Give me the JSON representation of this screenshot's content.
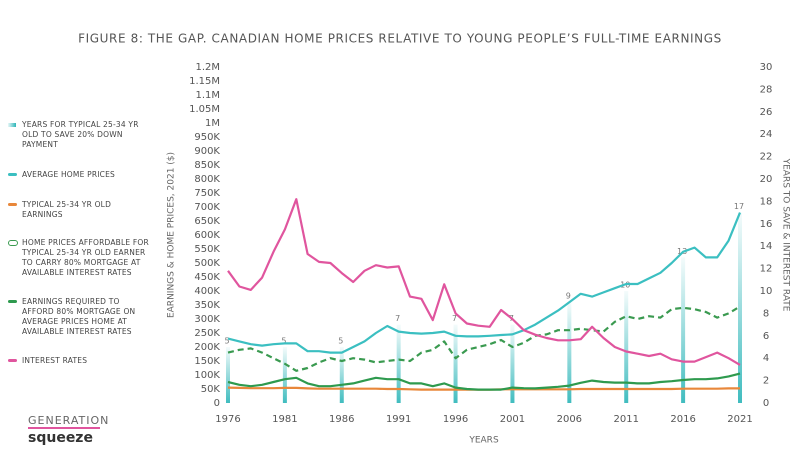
{
  "chart_data": {
    "type": "line",
    "title": "FIGURE 8: THE GAP. CANADIAN HOME PRICES RELATIVE TO YOUNG PEOPLE’S FULL-TIME EARNINGS",
    "xlabel": "YEARS",
    "ylabel": "EARNINGS & HOME PRICES, 2021 ($)",
    "y2label": "YEARS TO SAVE & INTEREST RATE",
    "x": [
      1976,
      1977,
      1978,
      1979,
      1980,
      1981,
      1982,
      1983,
      1984,
      1985,
      1986,
      1987,
      1988,
      1989,
      1990,
      1991,
      1992,
      1993,
      1994,
      1995,
      1996,
      1997,
      1998,
      1999,
      2000,
      2001,
      2002,
      2003,
      2004,
      2005,
      2006,
      2007,
      2008,
      2009,
      2010,
      2011,
      2012,
      2013,
      2014,
      2015,
      2016,
      2017,
      2018,
      2019,
      2020,
      2021
    ],
    "xlim": [
      1976,
      2021
    ],
    "xticks": [
      1976,
      1981,
      1986,
      1991,
      1996,
      2001,
      2006,
      2011,
      2016,
      2021
    ],
    "ylim": [
      0,
      1200000
    ],
    "yticks": [
      0,
      {
        "value": 50000,
        "label": "50K"
      },
      {
        "value": 100000,
        "label": "100K"
      },
      {
        "value": 150000,
        "label": "150K"
      },
      {
        "value": 200000,
        "label": "200K"
      },
      {
        "value": 250000,
        "label": "250K"
      },
      {
        "value": 300000,
        "label": "300K"
      },
      {
        "value": 350000,
        "label": "350K"
      },
      {
        "value": 400000,
        "label": "400K"
      },
      {
        "value": 450000,
        "label": "450K"
      },
      {
        "value": 500000,
        "label": "500K"
      },
      {
        "value": 550000,
        "label": "550K"
      },
      {
        "value": 600000,
        "label": "600K"
      },
      {
        "value": 650000,
        "label": "650K"
      },
      {
        "value": 700000,
        "label": "700K"
      },
      {
        "value": 750000,
        "label": "750K"
      },
      {
        "value": 800000,
        "label": "800K"
      },
      {
        "value": 850000,
        "label": "850K"
      },
      {
        "value": 900000,
        "label": "900K"
      },
      {
        "value": 950000,
        "label": "950K"
      },
      {
        "value": 1000000,
        "label": "1M"
      },
      {
        "value": 1050000,
        "label": "1.05M"
      },
      {
        "value": 1100000,
        "label": "1.1M"
      },
      {
        "value": 1150000,
        "label": "1.15M"
      },
      {
        "value": 1200000,
        "label": "1.2M"
      }
    ],
    "y2lim": [
      0,
      30
    ],
    "y2ticks": [
      0,
      2,
      4,
      6,
      8,
      10,
      12,
      14,
      16,
      18,
      20,
      22,
      24,
      26,
      28,
      30
    ],
    "series": [
      {
        "name": "YEARS FOR TYPICAL 25-34 YR OLD TO SAVE 20% DOWN PAYMENT",
        "type": "bar",
        "axis": "y2",
        "color": "#2bb5b8",
        "values": [
          5,
          null,
          null,
          null,
          null,
          5,
          null,
          null,
          null,
          null,
          5,
          null,
          null,
          null,
          null,
          7,
          null,
          null,
          null,
          null,
          7,
          null,
          null,
          null,
          null,
          7,
          null,
          null,
          null,
          null,
          9,
          null,
          null,
          null,
          null,
          10,
          null,
          null,
          null,
          null,
          13,
          null,
          null,
          null,
          null,
          17
        ]
      },
      {
        "name": "AVERAGE HOME PRICES",
        "type": "line",
        "color": "#3bbfc1",
        "values": [
          230000,
          220000,
          210000,
          205000,
          210000,
          213000,
          213000,
          185000,
          185000,
          180000,
          180000,
          200000,
          220000,
          250000,
          275000,
          255000,
          250000,
          248000,
          250000,
          255000,
          240000,
          238000,
          238000,
          240000,
          243000,
          245000,
          260000,
          280000,
          305000,
          330000,
          360000,
          390000,
          380000,
          395000,
          410000,
          425000,
          425000,
          445000,
          465000,
          500000,
          540000,
          555000,
          520000,
          520000,
          580000,
          680000
        ]
      },
      {
        "name": "TYPICAL 25-34 YR OLD EARNINGS",
        "type": "line",
        "color": "#e8873a",
        "values": [
          55000,
          54000,
          53000,
          53000,
          53000,
          54000,
          54000,
          52000,
          51000,
          51000,
          51000,
          51000,
          51000,
          51000,
          50000,
          50000,
          49000,
          48000,
          48000,
          48000,
          48000,
          48000,
          48000,
          48000,
          49000,
          49000,
          49000,
          49000,
          49000,
          49000,
          49000,
          50000,
          50000,
          50000,
          50000,
          50000,
          50000,
          50000,
          50000,
          50000,
          51000,
          51000,
          51000,
          51000,
          52000,
          52000
        ]
      },
      {
        "name": "HOME PRICES AFFORDABLE FOR TYPICAL 25-34 YR OLD EARNER TO CARRY 80% MORTGAGE AT AVAILABLE INTEREST RATES",
        "type": "line",
        "dashed": true,
        "color": "#3a9a50",
        "values": [
          180000,
          190000,
          195000,
          180000,
          160000,
          140000,
          115000,
          125000,
          145000,
          160000,
          150000,
          160000,
          155000,
          145000,
          150000,
          155000,
          150000,
          180000,
          190000,
          220000,
          160000,
          190000,
          200000,
          210000,
          225000,
          200000,
          215000,
          240000,
          245000,
          260000,
          260000,
          265000,
          260000,
          255000,
          290000,
          310000,
          300000,
          310000,
          305000,
          335000,
          340000,
          335000,
          325000,
          305000,
          320000,
          345000
        ]
      },
      {
        "name": "EARNINGS REQUIRED TO AFFORD 80% MORTGAGE ON AVERAGE PRICES HOME AT AVAILABLE INTEREST RATES",
        "type": "line",
        "color": "#2e9a4e",
        "values": [
          75000,
          65000,
          60000,
          65000,
          75000,
          85000,
          90000,
          70000,
          60000,
          60000,
          65000,
          70000,
          80000,
          90000,
          85000,
          85000,
          70000,
          70000,
          60000,
          70000,
          55000,
          50000,
          48000,
          48000,
          48000,
          55000,
          53000,
          52000,
          55000,
          58000,
          62000,
          72000,
          80000,
          75000,
          73000,
          73000,
          70000,
          70000,
          75000,
          78000,
          82000,
          85000,
          85000,
          88000,
          95000,
          105000
        ]
      },
      {
        "name": "INTEREST RATES",
        "type": "line",
        "axis": "y2",
        "color": "#e0559e",
        "values": [
          11.8,
          10.4,
          10.1,
          11.2,
          13.5,
          15.5,
          18.2,
          13.3,
          12.6,
          12.5,
          11.6,
          10.8,
          11.8,
          12.3,
          12.1,
          12.2,
          9.5,
          9.3,
          7.4,
          10.6,
          8.0,
          7.1,
          6.9,
          6.8,
          8.3,
          7.5,
          6.5,
          6.1,
          5.8,
          5.6,
          5.6,
          5.7,
          6.8,
          5.8,
          5.0,
          4.6,
          4.4,
          4.2,
          4.4,
          3.9,
          3.7,
          3.7,
          4.1,
          4.5,
          4.0,
          3.4
        ]
      }
    ]
  },
  "logo": {
    "top": "GENERATION",
    "bottom": "squeeze"
  }
}
